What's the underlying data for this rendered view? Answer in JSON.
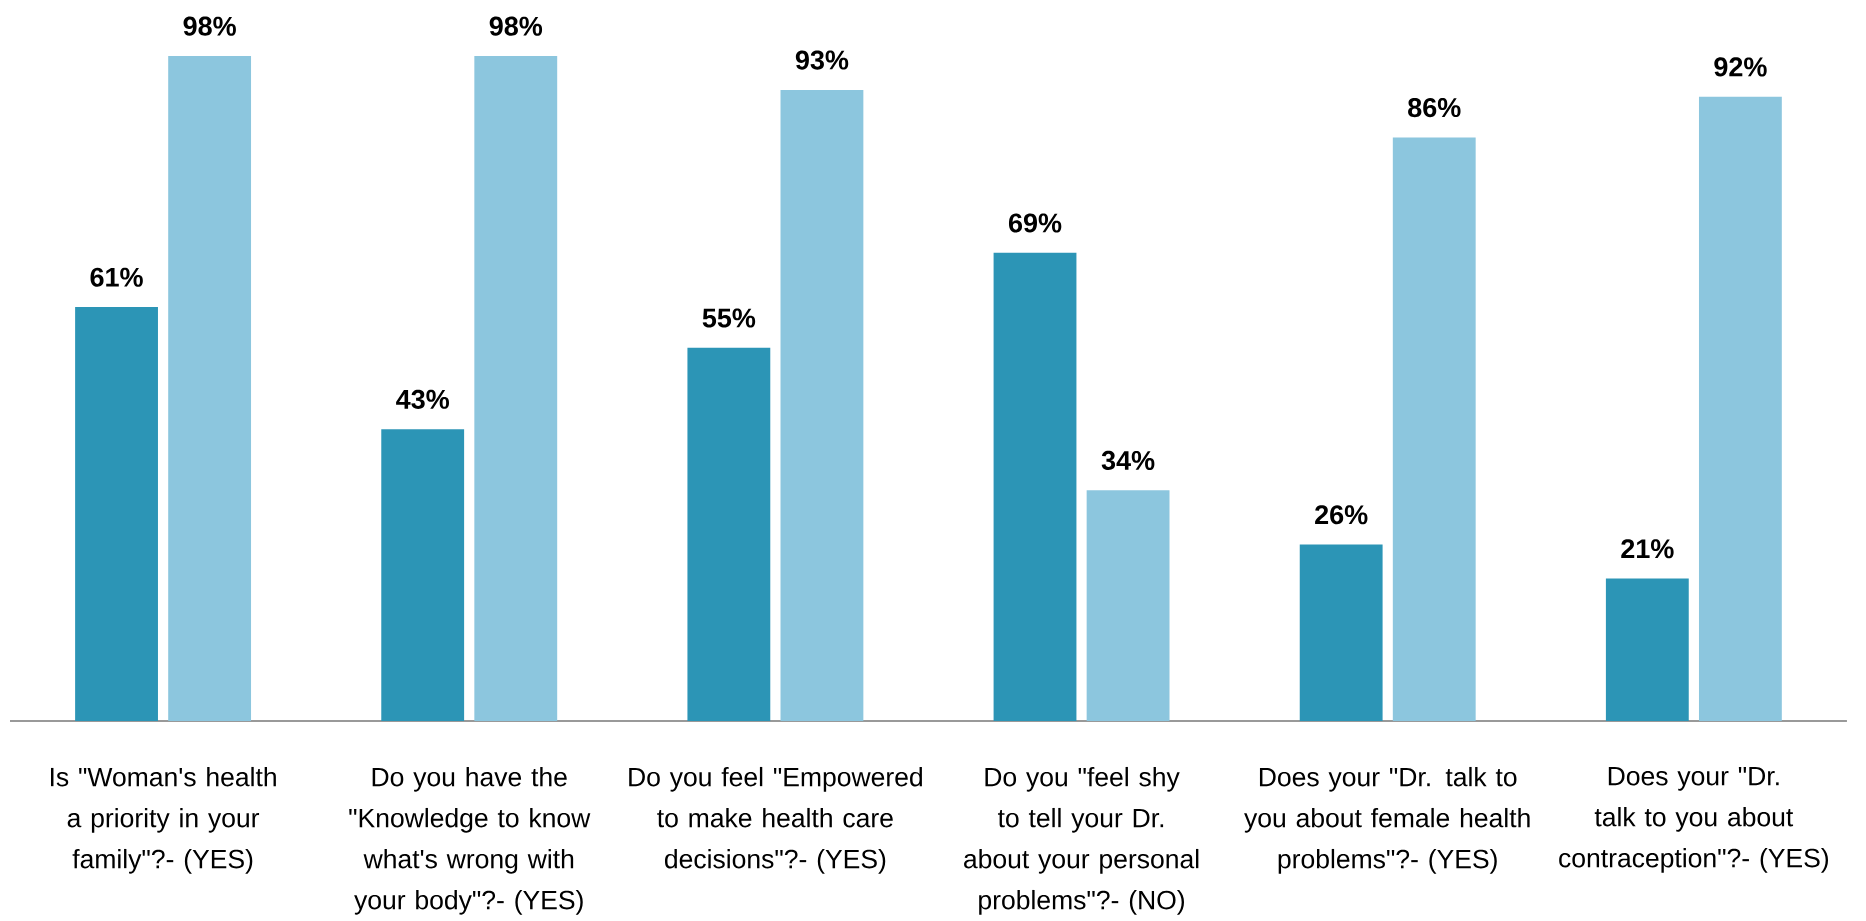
{
  "chart_data": {
    "type": "bar",
    "categories": [
      "Is \"Woman's  health a priority in your family\"?- (YES)",
      "Do you have the \"Knowledge to know what's wrong with your body\"?- (YES)",
      "Do you feel \"Empowered to make health care decisions\"?- (YES)",
      "Do you \"feel shy to tell your  Dr. about your personal problems\"?- (NO)",
      "Does your \"Dr. talk to you about female health problems\"?- (YES)",
      "Does your \"Dr. talk to you about contraception\"?- (YES)"
    ],
    "series": [
      {
        "color": "#2c95b6",
        "values": [
          61,
          43,
          55,
          69,
          26,
          21
        ],
        "value_labels": [
          "61%",
          "43%",
          "55%",
          "69%",
          "26%",
          "21%"
        ]
      },
      {
        "color": "#8cc6de",
        "values": [
          98,
          98,
          93,
          34,
          86,
          92
        ],
        "value_labels": [
          "98%",
          "98%",
          "93%",
          "34%",
          "86%",
          "92%"
        ]
      }
    ],
    "tick_labels": "x"
  }
}
